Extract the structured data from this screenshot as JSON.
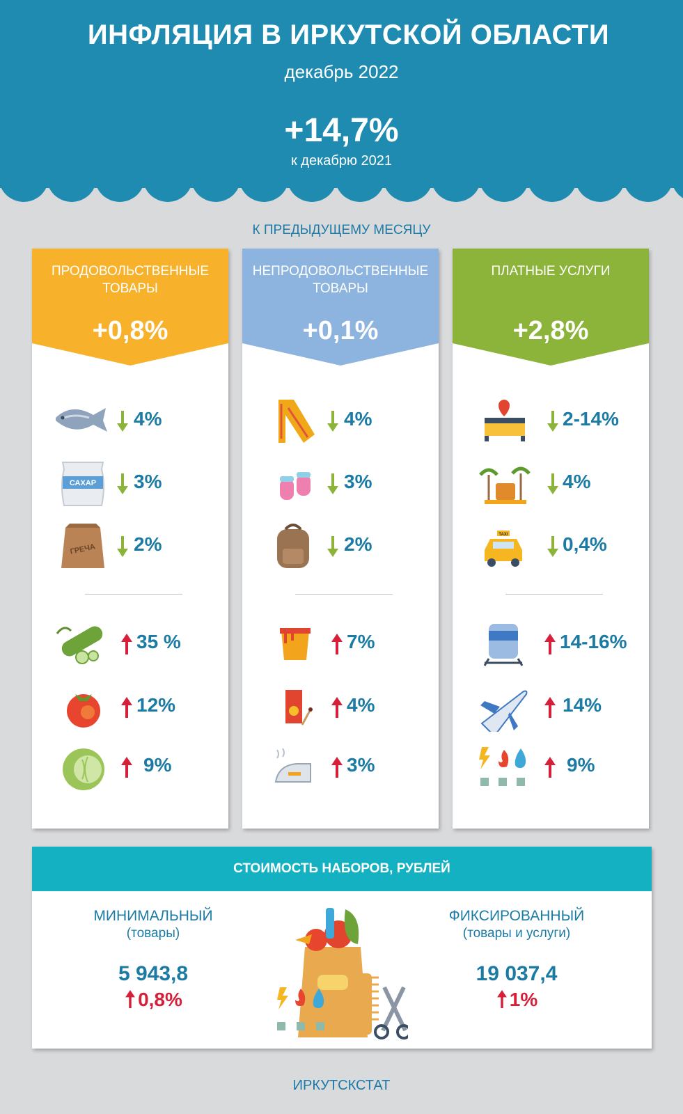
{
  "header": {
    "title": "ИНФЛЯЦИЯ В ИРКУТСКОЙ ОБЛАСТИ",
    "period": "декабрь 2022",
    "annual_value": "+14,7%",
    "annual_caption": "к декабрю 2021"
  },
  "section_label": "К ПРЕДЫДУЩЕМУ МЕСЯЦУ",
  "cards": [
    {
      "title": "ПРОДОВОЛЬСТВЕННЫЕ ТОВАРЫ",
      "value": "+0,8%",
      "color": "#f7b12a",
      "down": [
        {
          "icon": "fish-icon",
          "value": "4%"
        },
        {
          "icon": "sugar-bag-icon",
          "label": "САХАР",
          "value": "3%"
        },
        {
          "icon": "buckwheat-bag-icon",
          "label": "ГРЕЧА",
          "value": "2%"
        }
      ],
      "up": [
        {
          "icon": "cucumber-icon",
          "value": "35 %"
        },
        {
          "icon": "tomato-icon",
          "value": "12%"
        },
        {
          "icon": "cabbage-icon",
          "value": "9%"
        }
      ]
    },
    {
      "title": "НЕПРОДОВОЛЬСТВЕННЫЕ ТОВАРЫ",
      "value": "+0,1%",
      "color": "#8db4de",
      "down": [
        {
          "icon": "scarf-icon",
          "value": "4%"
        },
        {
          "icon": "mittens-icon",
          "value": "3%"
        },
        {
          "icon": "backpack-icon",
          "value": "2%"
        }
      ],
      "up": [
        {
          "icon": "paint-bucket-icon",
          "value": "7%"
        },
        {
          "icon": "matches-icon",
          "value": "4%"
        },
        {
          "icon": "iron-icon",
          "value": "3%"
        }
      ]
    },
    {
      "title": "ПЛАТНЫЕ УСЛУГИ",
      "value": "+2,8%",
      "color": "#8db43a",
      "down": [
        {
          "icon": "hotel-bed-icon",
          "value": "2-14%"
        },
        {
          "icon": "resort-suitcase-icon",
          "value": "4%"
        },
        {
          "icon": "taxi-icon",
          "label": "TAXI",
          "value": "0,4%"
        }
      ],
      "up": [
        {
          "icon": "train-icon",
          "value": "14-16%"
        },
        {
          "icon": "airplane-icon",
          "value": "14%"
        },
        {
          "icon": "utilities-icon",
          "value": "9%"
        }
      ]
    }
  ],
  "costs": {
    "title": "СТОИМОСТЬ  НАБОРОВ, РУБЛЕЙ",
    "minimal": {
      "name": "МИНИМАЛЬНЫЙ",
      "sub": "(товары)",
      "value": "5 943,8",
      "change": "0,8%"
    },
    "fixed": {
      "name": "ФИКСИРОВАННЫЙ",
      "sub": "(товары и услуги)",
      "value": "19 037,4",
      "change": "1%"
    }
  },
  "colors": {
    "header": "#1f8bb0",
    "text": "#1b7ba5",
    "down_arrow": "#8db43a",
    "up_arrow": "#d6203a",
    "costs_header": "#14b1c2"
  },
  "footer": "ИРКУТСКСТАТ"
}
